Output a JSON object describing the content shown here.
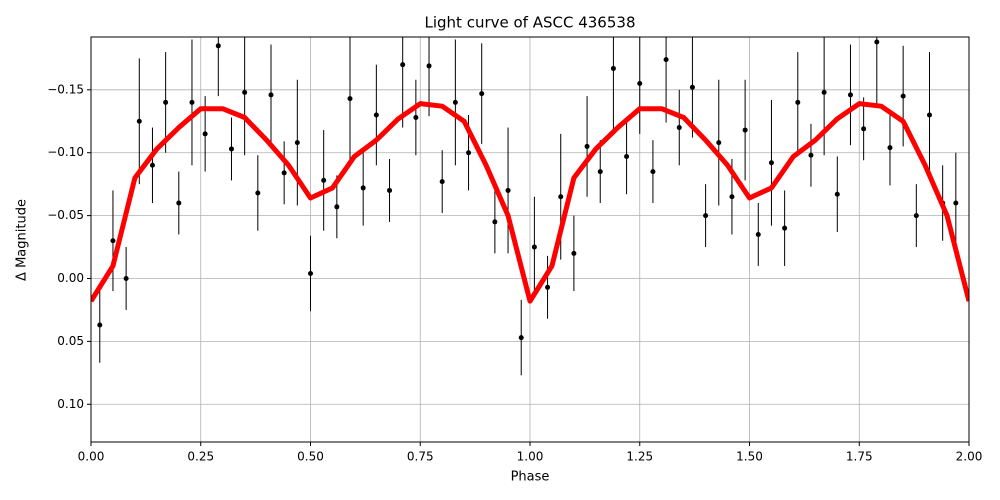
{
  "chart_data": {
    "type": "errorbar",
    "title": "Light curve of ASCC 436538",
    "x_label": "Phase",
    "y_label": "Δ Magnitude",
    "xlim": [
      0,
      2
    ],
    "ylim": [
      -0.192,
      0.13
    ],
    "y_inverted": true,
    "grid": true,
    "xticks": [
      {
        "value": 0,
        "label": "0.00"
      },
      {
        "value": 0.25,
        "label": "0.25"
      },
      {
        "value": 0.5,
        "label": "0.50"
      },
      {
        "value": 0.75,
        "label": "0.75"
      },
      {
        "value": 1,
        "label": "1.00"
      },
      {
        "value": 1.25,
        "label": "1.25"
      },
      {
        "value": 1.5,
        "label": "1.50"
      },
      {
        "value": 1.75,
        "label": "1.75"
      },
      {
        "value": 2,
        "label": "2.00"
      }
    ],
    "yticks": [
      {
        "value": -0.15,
        "label": "−0.15"
      },
      {
        "value": -0.1,
        "label": "−0.10"
      },
      {
        "value": -0.05,
        "label": "−0.05"
      },
      {
        "value": 0,
        "label": "0.00"
      },
      {
        "value": 0.05,
        "label": "0.05"
      },
      {
        "value": 0.1,
        "label": "0.10"
      }
    ],
    "points": {
      "color": "#000000",
      "x": [
        0.02,
        0.05,
        0.08,
        0.11,
        0.14,
        0.17,
        0.2,
        0.23,
        0.26,
        0.29,
        0.32,
        0.35,
        0.38,
        0.41,
        0.44,
        0.47,
        0.5,
        0.53,
        0.56,
        0.59,
        0.62,
        0.65,
        0.68,
        0.71,
        0.74,
        0.77,
        0.8,
        0.83,
        0.86,
        0.89,
        0.92,
        0.95,
        0.98,
        1.01,
        1.04,
        1.07,
        1.1,
        1.13,
        1.16,
        1.19,
        1.22,
        1.25,
        1.28,
        1.31,
        1.34,
        1.37,
        1.4,
        1.43,
        1.46,
        1.49,
        1.52,
        1.55,
        1.58,
        1.61,
        1.64,
        1.67,
        1.7,
        1.73,
        1.76,
        1.79,
        1.82,
        1.85,
        1.88,
        1.91,
        1.94,
        1.97
      ],
      "y": [
        0.037,
        -0.03,
        0.0,
        -0.125,
        -0.09,
        -0.14,
        -0.06,
        -0.14,
        -0.115,
        -0.185,
        -0.103,
        -0.148,
        -0.068,
        -0.146,
        -0.084,
        -0.108,
        -0.004,
        -0.078,
        -0.057,
        -0.143,
        -0.072,
        -0.13,
        -0.07,
        -0.17,
        -0.128,
        -0.169,
        -0.077,
        -0.14,
        -0.1,
        -0.147,
        -0.045,
        -0.07,
        0.047,
        -0.025,
        0.007,
        -0.065,
        -0.02,
        -0.105,
        -0.085,
        -0.167,
        -0.097,
        -0.155,
        -0.085,
        -0.174,
        -0.12,
        -0.152,
        -0.05,
        -0.108,
        -0.065,
        -0.118,
        -0.035,
        -0.092,
        -0.04,
        -0.14,
        -0.098,
        -0.148,
        -0.067,
        -0.146,
        -0.119,
        -0.188,
        -0.104,
        -0.145,
        -0.05,
        -0.13,
        -0.06,
        -0.06
      ],
      "yerr": [
        0.03,
        0.04,
        0.025,
        0.05,
        0.03,
        0.04,
        0.025,
        0.05,
        0.03,
        0.04,
        0.025,
        0.05,
        0.03,
        0.04,
        0.025,
        0.05,
        0.03,
        0.04,
        0.025,
        0.05,
        0.03,
        0.04,
        0.025,
        0.05,
        0.03,
        0.04,
        0.025,
        0.05,
        0.03,
        0.04,
        0.025,
        0.05,
        0.03,
        0.04,
        0.025,
        0.05,
        0.03,
        0.04,
        0.025,
        0.05,
        0.03,
        0.04,
        0.025,
        0.05,
        0.03,
        0.04,
        0.025,
        0.05,
        0.03,
        0.04,
        0.025,
        0.05,
        0.03,
        0.04,
        0.025,
        0.05,
        0.03,
        0.04,
        0.025,
        0.05,
        0.03,
        0.04,
        0.025,
        0.05,
        0.03,
        0.04
      ]
    },
    "model": {
      "color": "#ff0000",
      "x": [
        0,
        0.05,
        0.1,
        0.15,
        0.2,
        0.25,
        0.3,
        0.35,
        0.4,
        0.45,
        0.5,
        0.55,
        0.6,
        0.65,
        0.7,
        0.75,
        0.8,
        0.85,
        0.9,
        0.95,
        1,
        1.05,
        1.1,
        1.15,
        1.2,
        1.25,
        1.3,
        1.35,
        1.4,
        1.45,
        1.5,
        1.55,
        1.6,
        1.65,
        1.7,
        1.75,
        1.8,
        1.85,
        1.9,
        1.95,
        2
      ],
      "values": [
        0.018,
        -0.01,
        -0.08,
        -0.103,
        -0.12,
        -0.135,
        -0.135,
        -0.128,
        -0.11,
        -0.09,
        -0.064,
        -0.072,
        -0.097,
        -0.11,
        -0.127,
        -0.139,
        -0.137,
        -0.125,
        -0.09,
        -0.05,
        0.018,
        -0.01,
        -0.08,
        -0.103,
        -0.12,
        -0.135,
        -0.135,
        -0.128,
        -0.11,
        -0.09,
        -0.064,
        -0.072,
        -0.097,
        -0.11,
        -0.127,
        -0.139,
        -0.137,
        -0.125,
        -0.09,
        -0.05,
        0.018
      ]
    }
  }
}
